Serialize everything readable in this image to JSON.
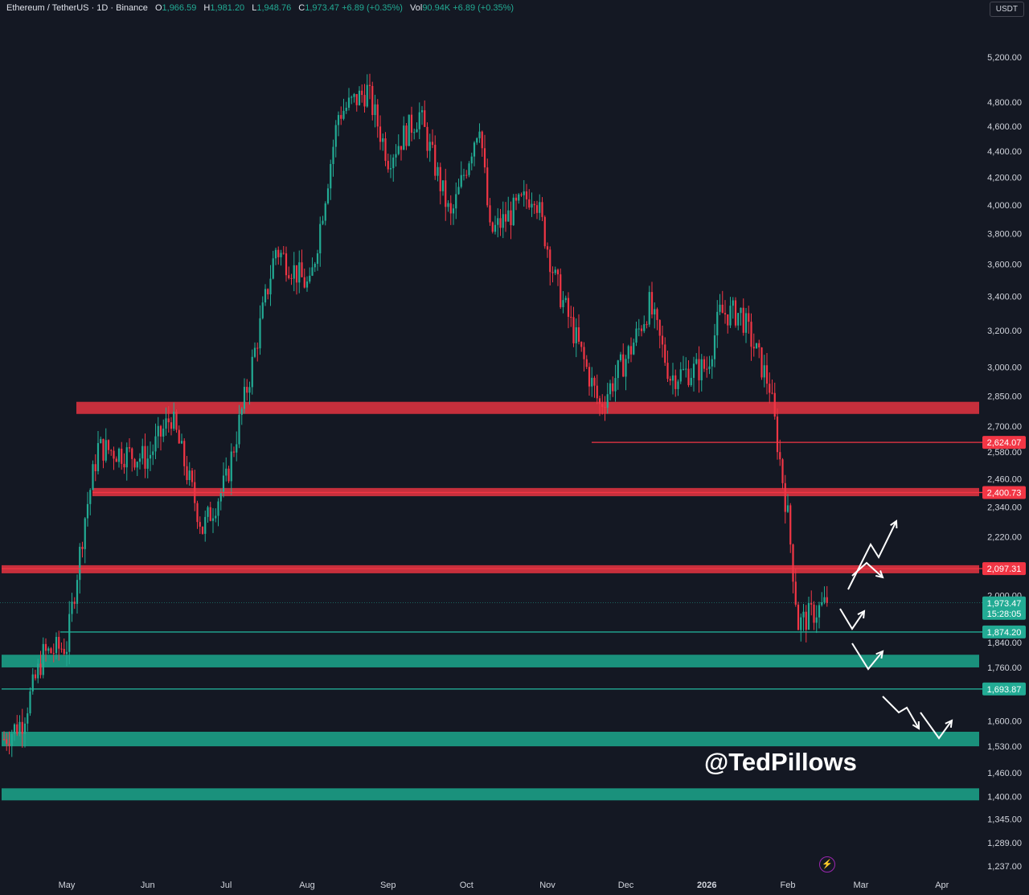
{
  "header": {
    "symbol": "Ethereum / TetherUS · 1D · Binance",
    "o_label": "O",
    "o": "1,966.59",
    "h_label": "H",
    "h": "1,981.20",
    "l_label": "L",
    "l": "1,948.76",
    "c_label": "C",
    "c": "1,973.47",
    "change": "+6.89 (+0.35%)",
    "vol_label": "Vol",
    "vol": "90.94K",
    "vol_change": "+6.89 (+0.35%)"
  },
  "currency_button": "USDT",
  "watermark": "@TedPillows",
  "colors": {
    "bg": "#141823",
    "up": "#22ab94",
    "down": "#f23645",
    "red_zone": "#d9323f",
    "green_zone": "#1b9e86"
  },
  "chart_data": {
    "type": "candlestick",
    "title": "Ethereum / TetherUS · 1D · Binance",
    "y_scale": "log",
    "y_ticks": [
      "5,200.00",
      "4,800.00",
      "4,600.00",
      "4,400.00",
      "4,200.00",
      "4,000.00",
      "3,800.00",
      "3,600.00",
      "3,400.00",
      "3,200.00",
      "3,000.00",
      "2,850.00",
      "2,700.00",
      "2,580.00",
      "2,460.00",
      "2,340.00",
      "2,220.00",
      "2,000.00",
      "1,840.00",
      "1,760.00",
      "1,600.00",
      "1,530.00",
      "1,460.00",
      "1,400.00",
      "1,345.00",
      "1,289.00",
      "1,237.00"
    ],
    "x_ticks": [
      "May",
      "Jun",
      "Jul",
      "Aug",
      "Sep",
      "Oct",
      "Nov",
      "Dec",
      "2026",
      "Feb",
      "Mar",
      "Apr"
    ],
    "price_path_approx": [
      [
        "2025-04-07",
        1550
      ],
      [
        "2025-04-14",
        1600
      ],
      [
        "2025-04-22",
        1800
      ],
      [
        "2025-05-01",
        1830
      ],
      [
        "2025-05-08",
        2300
      ],
      [
        "2025-05-13",
        2600
      ],
      [
        "2025-06-01",
        2550
      ],
      [
        "2025-06-10",
        2750
      ],
      [
        "2025-06-22",
        2250
      ],
      [
        "2025-07-01",
        2450
      ],
      [
        "2025-07-10",
        2950
      ],
      [
        "2025-07-20",
        3700
      ],
      [
        "2025-08-02",
        3450
      ],
      [
        "2025-08-13",
        4700
      ],
      [
        "2025-08-24",
        4900
      ],
      [
        "2025-09-01",
        4350
      ],
      [
        "2025-09-13",
        4700
      ],
      [
        "2025-09-25",
        3900
      ],
      [
        "2025-10-06",
        4650
      ],
      [
        "2025-10-10",
        3800
      ],
      [
        "2025-10-27",
        4100
      ],
      [
        "2025-11-04",
        3500
      ],
      [
        "2025-11-21",
        2800
      ],
      [
        "2025-12-03",
        3100
      ],
      [
        "2025-12-10",
        3350
      ],
      [
        "2025-12-18",
        2950
      ],
      [
        "2026-01-01",
        3000
      ],
      [
        "2026-01-06",
        3300
      ],
      [
        "2026-01-14",
        3300
      ],
      [
        "2026-01-25",
        2900
      ],
      [
        "2026-02-01",
        2300
      ],
      [
        "2026-02-05",
        1900
      ],
      [
        "2026-02-16",
        1973.47
      ]
    ],
    "resistance_zones": [
      {
        "low": 2760,
        "high": 2820
      },
      {
        "low": 2385,
        "high": 2420
      },
      {
        "low": 2080,
        "high": 2110
      }
    ],
    "support_zones": [
      {
        "low": 1760,
        "high": 1800
      },
      {
        "low": 1530,
        "high": 1570
      },
      {
        "low": 1390,
        "high": 1420
      }
    ],
    "levels": [
      {
        "price": 2624.07,
        "label": "2,624.07",
        "kind": "resistance"
      },
      {
        "price": 2400.73,
        "label": "2,400.73",
        "kind": "resistance"
      },
      {
        "price": 2097.31,
        "label": "2,097.31",
        "kind": "resistance"
      },
      {
        "price": 1874.2,
        "label": "1,874.20",
        "kind": "support"
      },
      {
        "price": 1693.87,
        "label": "1,693.87",
        "kind": "support"
      }
    ],
    "last_price": {
      "label": "1,973.47",
      "countdown": "15:28:05"
    }
  }
}
